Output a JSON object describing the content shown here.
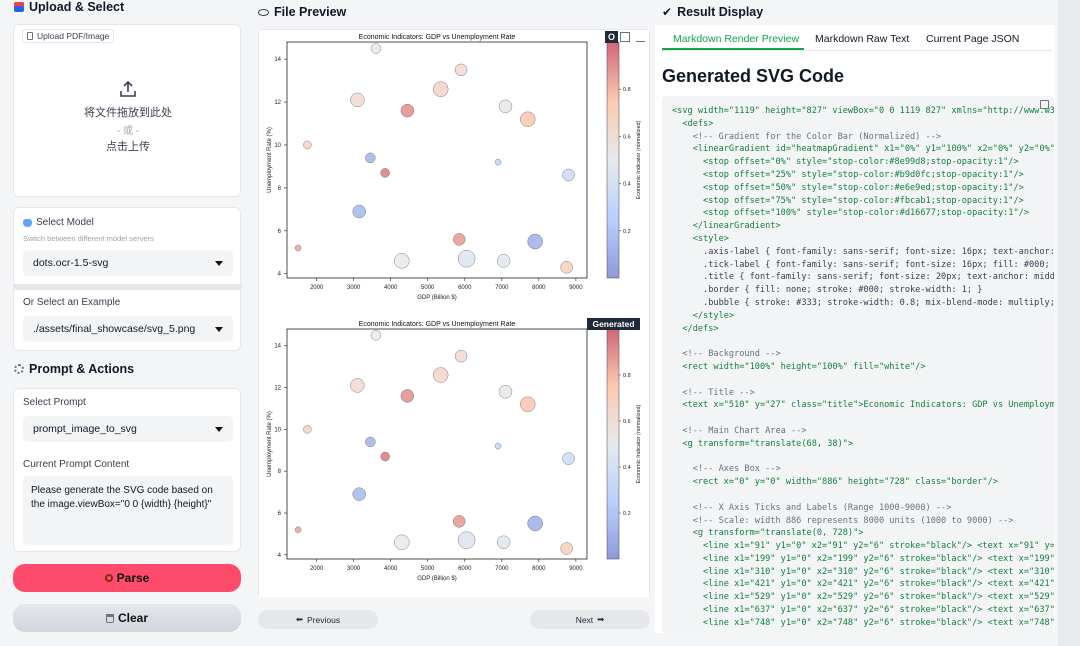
{
  "left": {
    "upload_title": "Upload & Select",
    "upload_tab": "Upload PDF/Image",
    "drop_text": "将文件拖放到此处",
    "or_text": "- 或 -",
    "click_text": "点击上传",
    "model_title": "Select Model",
    "model_hint": "Switch between different model servers",
    "model_value": "dots.ocr-1.5-svg",
    "example_label": "Or Select an Example",
    "example_value": "./assets/final_showcase/svg_5.png",
    "prompt_section_title": "Prompt & Actions",
    "prompt_label": "Select Prompt",
    "prompt_value": "prompt_image_to_svg",
    "content_label": "Current Prompt Content",
    "content_text": "Please generate the SVG code based on the image.viewBox=\"0 0 {width} {height}\"",
    "parse_label": "Parse",
    "clear_label": "Clear"
  },
  "middle": {
    "title": "File Preview",
    "prev_label": "Previous",
    "next_label": "Next",
    "badge_top": "O",
    "badge_bottom": "Generated"
  },
  "right": {
    "title": "Result Display",
    "tabs": [
      "Markdown Render Preview",
      "Markdown Raw Text",
      "Current Page JSON"
    ],
    "heading": "Generated SVG Code",
    "code_lines": [
      "<svg width=\"1119\" height=\"827\" viewBox=\"0 0 1119 827\" xmlns=\"http://www.w3",
      "  <defs>",
      "    <!-- Gradient for the Color Bar (Normalized) -->",
      "    <linearGradient id=\"heatmapGradient\" x1=\"0%\" y1=\"100%\" x2=\"0%\" y2=\"0%\">",
      "      <stop offset=\"0%\" style=\"stop-color:#8e99d8;stop-opacity:1\"/>",
      "      <stop offset=\"25%\" style=\"stop-color:#b9d0fc;stop-opacity:1\"/>",
      "      <stop offset=\"50%\" style=\"stop-color:#e6e9ed;stop-opacity:1\"/>",
      "      <stop offset=\"75%\" style=\"stop-color:#fbcab1;stop-opacity:1\"/>",
      "      <stop offset=\"100%\" style=\"stop-color:#d16677;stop-opacity:1\"/>",
      "    </linearGradient>",
      "    <style>",
      "      .axis-label { font-family: sans-serif; font-size: 16px; text-anchor: m",
      "      .tick-label { font-family: sans-serif; font-size: 16px; fill: #000; }",
      "      .title { font-family: sans-serif; font-size: 20px; text-anchor: middl",
      "      .border { fill: none; stroke: #000; stroke-width: 1; }",
      "      .bubble { stroke: #333; stroke-width: 0.8; mix-blend-mode: multiply;",
      "    </style>",
      "  </defs>",
      "",
      "  <!-- Background -->",
      "  <rect width=\"100%\" height=\"100%\" fill=\"white\"/>",
      "",
      "  <!-- Title -->",
      "  <text x=\"510\" y=\"27\" class=\"title\">Economic Indicators: GDP vs Unemployme",
      "",
      "  <!-- Main Chart Area -->",
      "  <g transform=\"translate(68, 38)\">",
      "",
      "    <!-- Axes Box -->",
      "    <rect x=\"0\" y=\"0\" width=\"886\" height=\"728\" class=\"border\"/>",
      "",
      "    <!-- X Axis Ticks and Labels (Range 1000-9000) -->",
      "    <!-- Scale: width 886 represents 8000 units (1000 to 9000) -->",
      "    <g transform=\"translate(0, 728)\">",
      "      <line x1=\"91\" y1=\"0\" x2=\"91\" y2=\"6\" stroke=\"black\"/> <text x=\"91\" y=",
      "      <line x1=\"199\" y1=\"0\" x2=\"199\" y2=\"6\" stroke=\"black\"/> <text x=\"199\"",
      "      <line x1=\"310\" y1=\"0\" x2=\"310\" y2=\"6\" stroke=\"black\"/> <text x=\"310\"",
      "      <line x1=\"421\" y1=\"0\" x2=\"421\" y2=\"6\" stroke=\"black\"/> <text x=\"421\"",
      "      <line x1=\"529\" y1=\"0\" x2=\"529\" y2=\"6\" stroke=\"black\"/> <text x=\"529\"",
      "      <line x1=\"637\" y1=\"0\" x2=\"637\" y2=\"6\" stroke=\"black\"/> <text x=\"637\"",
      "      <line x1=\"748\" y1=\"0\" x2=\"748\" y2=\"6\" stroke=\"black\"/> <text x=\"748\""
    ]
  },
  "chart_data": [
    {
      "type": "scatter",
      "title": "Economic Indicators: GDP vs Unemployment Rate",
      "xlabel": "GDP (Billion $)",
      "ylabel": "Unemployment Rate (%)",
      "colorbar_label": "Economic Indicator (normalized)",
      "xlim": [
        1200,
        9300
      ],
      "ylim": [
        3.8,
        14.8
      ],
      "x_ticks": [
        2000,
        3000,
        4000,
        5000,
        6000,
        7000,
        8000,
        9000
      ],
      "y_ticks": [
        4,
        6,
        8,
        10,
        12,
        14
      ],
      "colorbar_ticks": [
        0.2,
        0.4,
        0.6,
        0.8
      ],
      "points": [
        {
          "x": 3600,
          "y": 14.5,
          "s": 5,
          "c": 0.5
        },
        {
          "x": 5900,
          "y": 13.5,
          "s": 6,
          "c": 0.62
        },
        {
          "x": 5350,
          "y": 12.6,
          "s": 7.5,
          "c": 0.66
        },
        {
          "x": 3100,
          "y": 12.1,
          "s": 7,
          "c": 0.62
        },
        {
          "x": 7100,
          "y": 11.8,
          "s": 6.5,
          "c": 0.52
        },
        {
          "x": 4450,
          "y": 11.6,
          "s": 6.5,
          "c": 0.9
        },
        {
          "x": 7700,
          "y": 11.2,
          "s": 7.5,
          "c": 0.76
        },
        {
          "x": 1750,
          "y": 10.0,
          "s": 4,
          "c": 0.68
        },
        {
          "x": 3450,
          "y": 9.4,
          "s": 5,
          "c": 0.12
        },
        {
          "x": 6900,
          "y": 9.2,
          "s": 3,
          "c": 0.3
        },
        {
          "x": 3850,
          "y": 8.7,
          "s": 4.5,
          "c": 0.95
        },
        {
          "x": 8800,
          "y": 8.6,
          "s": 6,
          "c": 0.35
        },
        {
          "x": 3150,
          "y": 6.9,
          "s": 6.5,
          "c": 0.14
        },
        {
          "x": 5850,
          "y": 5.6,
          "s": 6,
          "c": 0.88
        },
        {
          "x": 7900,
          "y": 5.5,
          "s": 7.5,
          "c": 0.1
        },
        {
          "x": 1500,
          "y": 5.2,
          "s": 3,
          "c": 0.85
        },
        {
          "x": 4300,
          "y": 4.6,
          "s": 7.5,
          "c": 0.5
        },
        {
          "x": 6050,
          "y": 4.7,
          "s": 8.5,
          "c": 0.45
        },
        {
          "x": 7050,
          "y": 4.6,
          "s": 6.5,
          "c": 0.48
        },
        {
          "x": 8750,
          "y": 4.3,
          "s": 6,
          "c": 0.7
        }
      ]
    },
    {
      "type": "scatter",
      "title": "Economic Indicators: GDP vs Unemployment Rate",
      "xlabel": "GDP (Billion $)",
      "ylabel": "Unemployment Rate (%)",
      "colorbar_label": "Economic Indicator (normalized)",
      "xlim": [
        1200,
        9300
      ],
      "ylim": [
        3.8,
        14.8
      ],
      "x_ticks": [
        2000,
        3000,
        4000,
        5000,
        6000,
        7000,
        8000,
        9000
      ],
      "y_ticks": [
        4,
        6,
        8,
        10,
        12,
        14
      ],
      "colorbar_ticks": [
        0.2,
        0.4,
        0.6,
        0.8
      ],
      "points": [
        {
          "x": 3600,
          "y": 14.5,
          "s": 5,
          "c": 0.5
        },
        {
          "x": 5900,
          "y": 13.5,
          "s": 6,
          "c": 0.62
        },
        {
          "x": 5350,
          "y": 12.6,
          "s": 7.5,
          "c": 0.66
        },
        {
          "x": 3100,
          "y": 12.1,
          "s": 7,
          "c": 0.62
        },
        {
          "x": 7100,
          "y": 11.8,
          "s": 6.5,
          "c": 0.52
        },
        {
          "x": 4450,
          "y": 11.6,
          "s": 6.5,
          "c": 0.9
        },
        {
          "x": 7700,
          "y": 11.2,
          "s": 7.5,
          "c": 0.76
        },
        {
          "x": 1750,
          "y": 10.0,
          "s": 4,
          "c": 0.68
        },
        {
          "x": 3450,
          "y": 9.4,
          "s": 5,
          "c": 0.12
        },
        {
          "x": 6900,
          "y": 9.2,
          "s": 3,
          "c": 0.3
        },
        {
          "x": 3850,
          "y": 8.7,
          "s": 4.5,
          "c": 0.95
        },
        {
          "x": 8800,
          "y": 8.6,
          "s": 6,
          "c": 0.35
        },
        {
          "x": 3150,
          "y": 6.9,
          "s": 6.5,
          "c": 0.14
        },
        {
          "x": 5850,
          "y": 5.6,
          "s": 6,
          "c": 0.88
        },
        {
          "x": 7900,
          "y": 5.5,
          "s": 7.5,
          "c": 0.1
        },
        {
          "x": 1500,
          "y": 5.2,
          "s": 3,
          "c": 0.85
        },
        {
          "x": 4300,
          "y": 4.6,
          "s": 7.5,
          "c": 0.5
        },
        {
          "x": 6050,
          "y": 4.7,
          "s": 8.5,
          "c": 0.45
        },
        {
          "x": 7050,
          "y": 4.6,
          "s": 6.5,
          "c": 0.48
        },
        {
          "x": 8750,
          "y": 4.3,
          "s": 6,
          "c": 0.7
        }
      ]
    }
  ],
  "colors": {
    "accent": "#ff4b6b",
    "tab_active": "#16a34a",
    "gradient": [
      "#8e99d8",
      "#b9d0fc",
      "#e6e9ed",
      "#fbcab1",
      "#d16677"
    ]
  },
  "icons": {
    "upload": "upload-icon",
    "model": "model-icon",
    "gear": "gear-icon",
    "eye": "eye-icon",
    "check": "check-icon",
    "copy": "copy-icon",
    "search": "search-icon",
    "trash": "trash-icon"
  }
}
